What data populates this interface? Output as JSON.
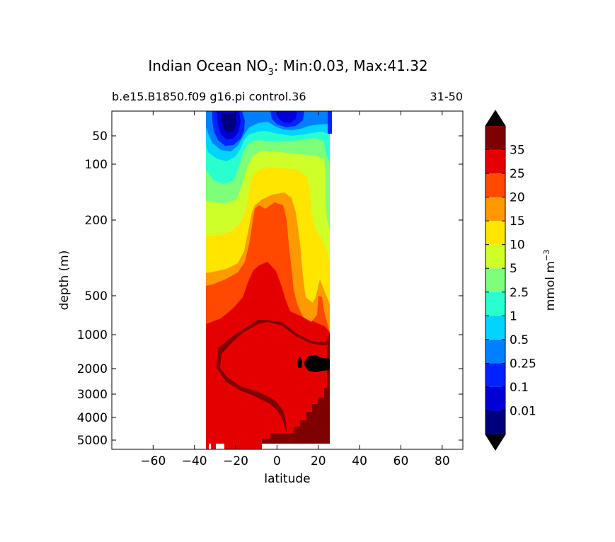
{
  "chart_data": {
    "type": "heatmap",
    "title_prefix": "Indian Ocean NO",
    "title_subscript": "3",
    "title_suffix": ": Min:0.03, Max:41.32",
    "subtitle_left": "b.e15.B1850.f09 g16.pi control.36",
    "subtitle_right": "31-50",
    "xlabel": "latitude",
    "ylabel": "depth (m)",
    "xlim": [
      -80,
      90
    ],
    "x_ticks": [
      -60,
      -40,
      -20,
      0,
      20,
      40,
      60,
      80
    ],
    "x_tick_labels": [
      "−60",
      "−40",
      "−20",
      "0",
      "20",
      "40",
      "60",
      "80"
    ],
    "y_ticks": [
      50,
      100,
      200,
      500,
      1000,
      2000,
      3000,
      4000,
      5000
    ],
    "y_tick_labels": [
      "50",
      "100",
      "200",
      "500",
      "1000",
      "2000",
      "3000",
      "4000",
      "5000"
    ],
    "data_lat_range": [
      -34,
      26
    ],
    "colorbar": {
      "label_main": "mmol m",
      "label_exp": "−3",
      "levels": [
        "0.01",
        "0.1",
        "0.25",
        "0.5",
        "1",
        "2.5",
        "5",
        "10",
        "15",
        "20",
        "25",
        "35"
      ],
      "colors": [
        "#00007f",
        "#0000d6",
        "#0022ff",
        "#0080ff",
        "#00d4ff",
        "#29ffce",
        "#7dff7a",
        "#ceff29",
        "#ffe500",
        "#ff9900",
        "#ff4800",
        "#e50000",
        "#7f0000"
      ],
      "extend_color": "#000000"
    }
  }
}
